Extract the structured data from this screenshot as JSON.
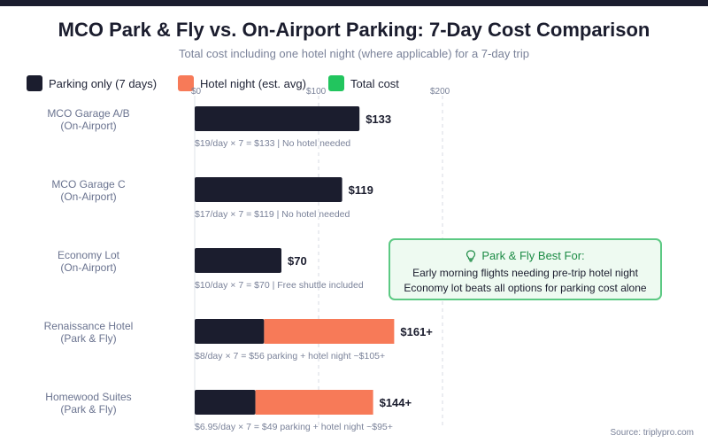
{
  "title": "MCO Park & Fly vs. On-Airport Parking: 7-Day Cost Comparison",
  "subtitle": "Total cost including one hotel night (where applicable) for a 7-day trip",
  "legend": [
    {
      "label": "Parking only (7 days)",
      "color": "#1b1d2e"
    },
    {
      "label": "Hotel night (est. avg)",
      "color": "#f77a58"
    },
    {
      "label": "Total cost",
      "color": "#22c55e"
    }
  ],
  "callout": {
    "icon": "lightbulb-icon",
    "title": "Park & Fly Best For:",
    "lines": [
      "Early morning flights needing pre-trip hotel night",
      "Economy lot beats all options for parking cost alone"
    ]
  },
  "source": "Source: triplypro.com",
  "chart_data": {
    "type": "bar",
    "orientation": "horizontal",
    "stacked": true,
    "x_ticks": [
      "$0",
      "$100",
      "$200"
    ],
    "xlim": [
      0,
      200
    ],
    "grid": true,
    "legend_position": "top-left",
    "categories": [
      [
        "MCO Garage A/B",
        "(On-Airport)"
      ],
      [
        "MCO Garage C",
        "(On-Airport)"
      ],
      [
        "Economy Lot",
        "(On-Airport)"
      ],
      [
        "Renaissance Hotel",
        "(Park & Fly)"
      ],
      [
        "Homewood Suites",
        "(Park & Fly)"
      ]
    ],
    "series": [
      {
        "name": "Parking only (7 days)",
        "color": "#1b1d2e",
        "values": [
          133,
          119,
          70,
          56,
          49
        ]
      },
      {
        "name": "Hotel night (est. avg)",
        "color": "#f77a58",
        "values": [
          0,
          0,
          0,
          105,
          95
        ]
      }
    ],
    "value_labels": [
      "$133",
      "$119",
      "$70",
      "$161+",
      "$144+"
    ],
    "annotations": [
      "$19/day × 7 = $133 | No hotel needed",
      "$17/day × 7 = $119 | No hotel needed",
      "$10/day × 7 = $70 | Free shuttle included",
      "$8/day × 7 = $56 parking + hotel night ~$105+",
      "$6.95/day × 7 = $49 parking + hotel night ~$95+"
    ]
  }
}
